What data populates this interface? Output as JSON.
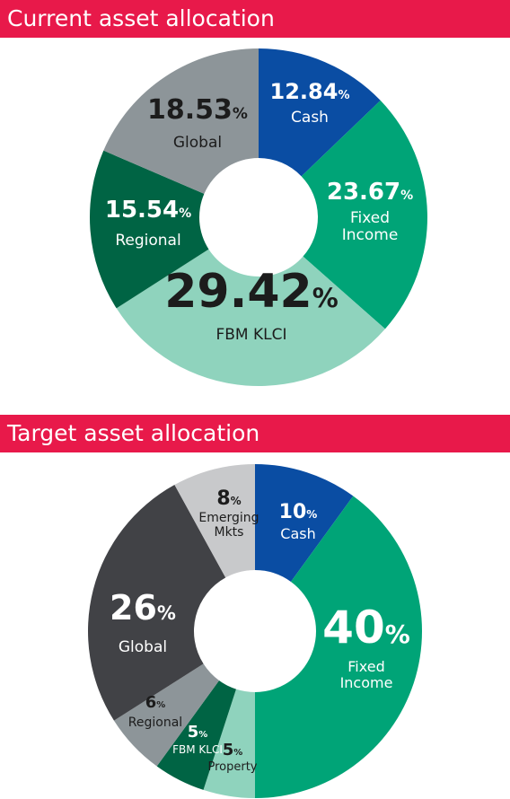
{
  "chart_data": [
    {
      "type": "pie",
      "title": "Current asset allocation",
      "unit": "%",
      "slices": [
        {
          "value": "12.84",
          "label": [
            "Cash"
          ],
          "color": "#0a4da3"
        },
        {
          "value": "23.67",
          "label": [
            "Fixed",
            "Income"
          ],
          "color": "#00a477"
        },
        {
          "value": "29.42",
          "label": [
            "FBM KLCI"
          ],
          "color": "#8fd3bd"
        },
        {
          "value": "15.54",
          "label": [
            "Regional"
          ],
          "color": "#006444"
        },
        {
          "value": "18.53",
          "label": [
            "Global"
          ],
          "color": "#8d9599"
        }
      ]
    },
    {
      "type": "pie",
      "title": "Target asset allocation",
      "unit": "%",
      "slices": [
        {
          "value": "10",
          "label": [
            "Cash"
          ],
          "color": "#0a4da3"
        },
        {
          "value": "40",
          "label": [
            "Fixed",
            "Income"
          ],
          "color": "#00a477"
        },
        {
          "value": "5",
          "label": [
            "Property"
          ],
          "color": "#8fd3bd"
        },
        {
          "value": "5",
          "label": [
            "FBM KLCI"
          ],
          "color": "#006444"
        },
        {
          "value": "6",
          "label": [
            "Regional"
          ],
          "color": "#8d9599"
        },
        {
          "value": "26",
          "label": [
            "Global"
          ],
          "color": "#414246"
        },
        {
          "value": "8",
          "label": [
            "Emerging",
            "Mkts"
          ],
          "color": "#c8c9cb"
        }
      ]
    }
  ]
}
